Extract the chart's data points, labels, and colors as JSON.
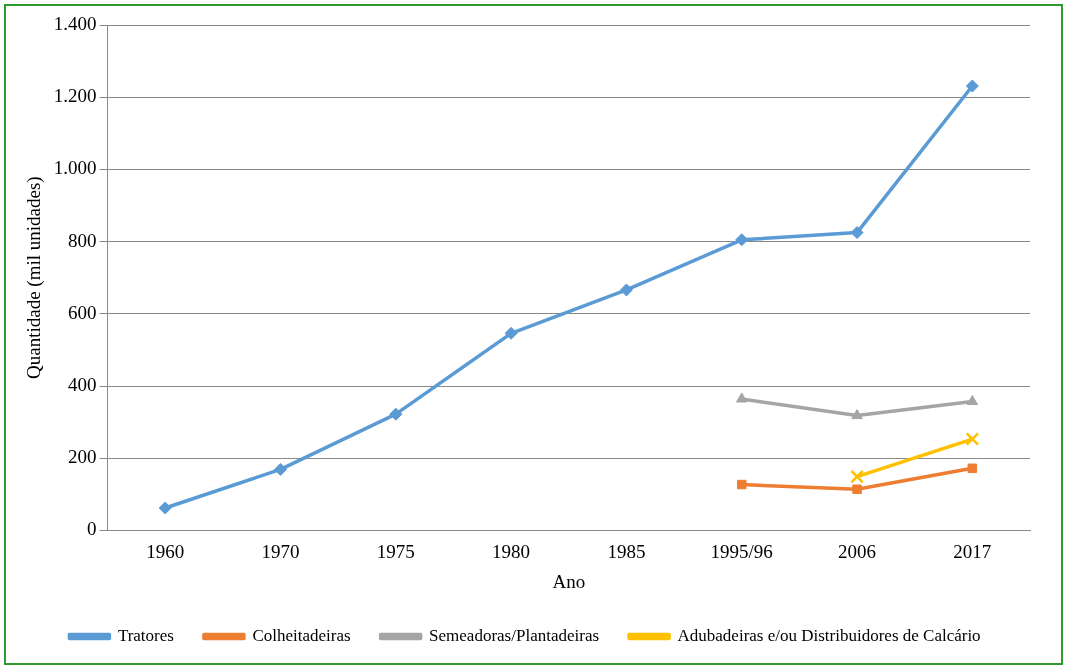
{
  "chart_data": {
    "type": "line",
    "xlabel": "Ano",
    "ylabel": "Quantidade (mil unidades)",
    "categories": [
      "1960",
      "1970",
      "1975",
      "1980",
      "1985",
      "1995/96",
      "2006",
      "2017"
    ],
    "series": [
      {
        "name": "Tratores",
        "color": "#5b9bd5",
        "marker": "diamond",
        "values": [
          62,
          169,
          322,
          546,
          666,
          805,
          825,
          1231
        ]
      },
      {
        "name": "Colheitadeiras",
        "color": "#ed7d31",
        "marker": "square",
        "values": [
          null,
          null,
          null,
          null,
          null,
          127,
          114,
          172
        ]
      },
      {
        "name": "Semeadoras/Plantadeiras",
        "color": "#a5a5a5",
        "marker": "triangle",
        "values": [
          null,
          null,
          null,
          null,
          null,
          364,
          318,
          357
        ]
      },
      {
        "name": "Adubadeiras e/ou Distribuidores de Calcário",
        "color": "#ffc000",
        "marker": "cross",
        "values": [
          null,
          null,
          null,
          null,
          null,
          null,
          149,
          253
        ]
      }
    ],
    "ylim": [
      0,
      1400
    ],
    "yticks": [
      {
        "value": 0,
        "label": "0"
      },
      {
        "value": 200,
        "label": "200"
      },
      {
        "value": 400,
        "label": "400"
      },
      {
        "value": 600,
        "label": "600"
      },
      {
        "value": 800,
        "label": "800"
      },
      {
        "value": 1000,
        "label": "1.000"
      },
      {
        "value": 1200,
        "label": "1.200"
      },
      {
        "value": 1400,
        "label": "1.400"
      }
    ],
    "grid": "y",
    "legend": "bottom",
    "line_style": "solid"
  }
}
